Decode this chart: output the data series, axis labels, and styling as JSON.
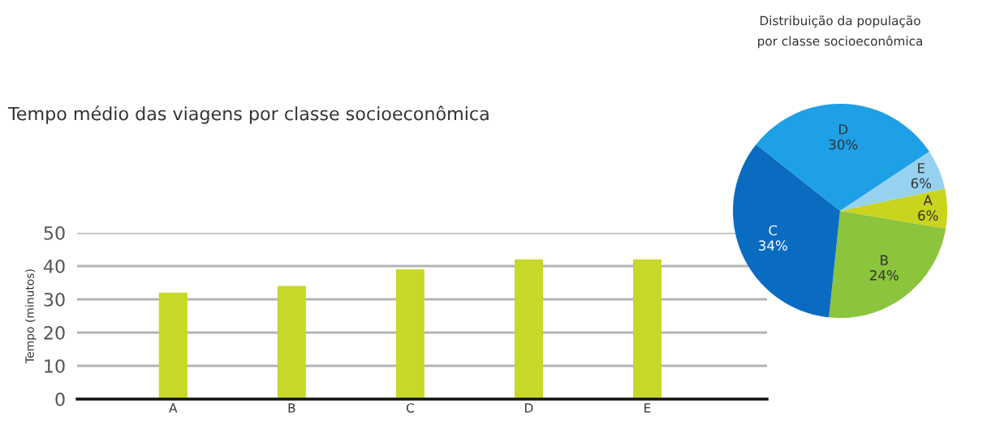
{
  "chart_data": [
    {
      "type": "bar",
      "title": "Tempo médio das viagens por classe socioeconômica",
      "ylabel": "Tempo (minutos)",
      "categories": [
        "A",
        "B",
        "C",
        "D",
        "E"
      ],
      "values": [
        32,
        34,
        39,
        42,
        42
      ],
      "color": "#c8d828",
      "ylim": [
        0,
        50
      ],
      "yticks": [
        0,
        10,
        20,
        30,
        40,
        50
      ],
      "grid": "y"
    },
    {
      "type": "pie",
      "title": "Distribuição da população\npor classe socioeconômica",
      "categories": [
        "A",
        "B",
        "C",
        "D",
        "E"
      ],
      "values": [
        6,
        24,
        34,
        30,
        6
      ],
      "value_labels": [
        "6%",
        "24%",
        "34%",
        "30%",
        "6%"
      ],
      "colors": [
        "#c8d41e",
        "#8cc43c",
        "#0a6cc0",
        "#1ea0e6",
        "#96d2f0"
      ]
    }
  ]
}
